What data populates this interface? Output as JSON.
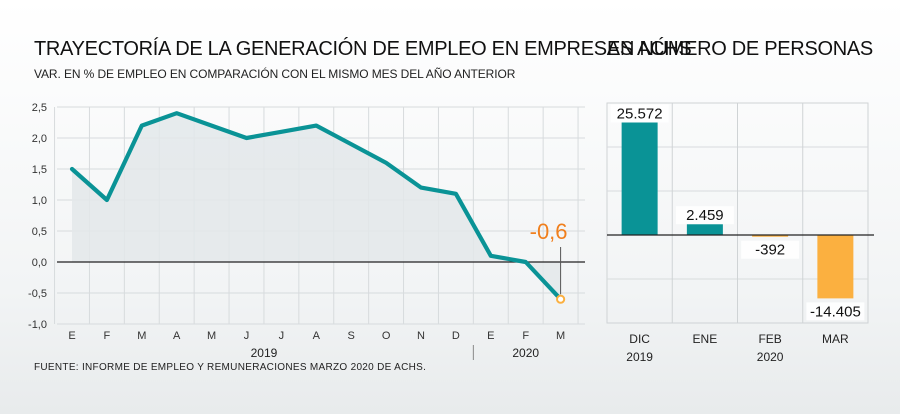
{
  "titles": {
    "left": "TRAYECTORÍA DE LA GENERACIÓN DE EMPLEO EN EMPRESAS ACHS",
    "subtitle": "VAR. EN % DE EMPLEO EN COMPARACIÓN CON EL MISMO MES DEL AÑO ANTERIOR",
    "right": "EN NÚMERO DE PERSONAS"
  },
  "source": "FUENTE: INFORME DE EMPLEO Y REMUNERACIONES MARZO 2020 DE ACHS.",
  "colors": {
    "teal": "#0a9396",
    "orange": "#fbb040",
    "orange_text": "#f07f1d",
    "area": "#e3e8ea"
  },
  "chart_data": [
    {
      "type": "line",
      "categories": [
        "E",
        "F",
        "M",
        "A",
        "M",
        "J",
        "J",
        "A",
        "S",
        "O",
        "N",
        "D",
        "E",
        "F",
        "M"
      ],
      "year_labels": [
        {
          "label": "2019",
          "span": [
            0,
            11
          ]
        },
        {
          "label": "2020",
          "span": [
            12,
            14
          ]
        }
      ],
      "values": [
        1.5,
        1.0,
        2.2,
        2.4,
        2.2,
        2.0,
        2.1,
        2.2,
        1.9,
        1.6,
        1.2,
        1.1,
        0.1,
        0.0,
        -0.6
      ],
      "yticks": [
        "2,5",
        "2,0",
        "1,5",
        "1,0",
        "0,5",
        "0,0",
        "-0,5",
        "-1,0"
      ],
      "ylim": [
        -1.0,
        2.5
      ],
      "highlight": {
        "index": 14,
        "label": "-0,6"
      },
      "grid": true
    },
    {
      "type": "bar",
      "categories": [
        "DIC",
        "ENE",
        "FEB",
        "MAR"
      ],
      "year_labels": [
        {
          "label": "2019",
          "span": [
            0,
            0
          ]
        },
        {
          "label": "2020",
          "span": [
            1,
            3
          ]
        }
      ],
      "values": [
        25572,
        2459,
        -392,
        -14405
      ],
      "value_labels": [
        "25.572",
        "2.459",
        "-392",
        "-14.405"
      ],
      "ylim": [
        -20000,
        30000
      ],
      "grid": true
    }
  ]
}
